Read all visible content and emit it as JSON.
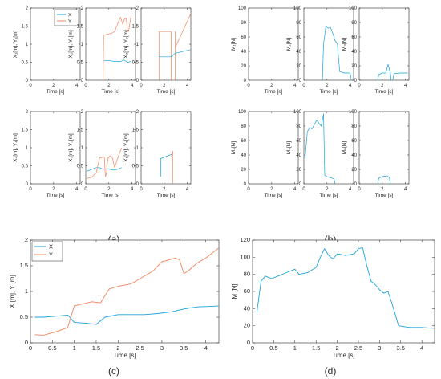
{
  "colors": {
    "x_series": "#1ca3d9",
    "y_series": "#f2845c",
    "axis": "#262626"
  },
  "captions": {
    "a": "(a)",
    "b": "(b)",
    "c": "(c)",
    "d": "(d)"
  },
  "chart_data": [
    {
      "id": "a1",
      "type": "line",
      "xlabel": "Time [s]",
      "ylabel": "X₁[m], Y₁[m]",
      "xlim": [
        0,
        4.3
      ],
      "ylim": [
        0,
        2
      ],
      "xticks": [
        0,
        2,
        4
      ],
      "yticks": [
        0,
        0.5,
        1,
        1.5,
        2
      ],
      "legend": {
        "placement": "top-right",
        "entries": [
          "X",
          "Y"
        ]
      },
      "series": []
    },
    {
      "id": "a2",
      "type": "line",
      "xlabel": "Time [s]",
      "ylabel": "X₂[m], Y₂[m]",
      "xlim": [
        0,
        4.3
      ],
      "ylim": [
        0,
        2
      ],
      "xticks": [
        0,
        2,
        4
      ],
      "yticks": [
        0,
        0.5,
        1,
        1.5,
        2
      ],
      "series": [
        {
          "color": "x",
          "points": [
            [
              1.5,
              0.55
            ],
            [
              2.0,
              0.55
            ],
            [
              2.5,
              0.52
            ],
            [
              3.0,
              0.52
            ],
            [
              3.3,
              0.56
            ],
            [
              3.6,
              0.5
            ],
            [
              3.9,
              0.52
            ]
          ]
        },
        {
          "color": "y",
          "points": [
            [
              1.5,
              0
            ],
            [
              1.55,
              1.25
            ],
            [
              2.2,
              1.3
            ],
            [
              2.5,
              1.35
            ],
            [
              2.8,
              1.6
            ],
            [
              3.0,
              1.75
            ],
            [
              3.2,
              1.55
            ],
            [
              3.35,
              1.7
            ],
            [
              3.5,
              1.72
            ],
            [
              3.6,
              1.35
            ],
            [
              3.7,
              1.35
            ],
            [
              3.8,
              1.55
            ],
            [
              3.9,
              1.75
            ],
            [
              3.95,
              1.8
            ]
          ]
        }
      ]
    },
    {
      "id": "a3",
      "type": "line",
      "xlabel": "Time [s]",
      "ylabel": "X₃[m], Y₃[m]",
      "xlim": [
        0,
        4.3
      ],
      "ylim": [
        0,
        2
      ],
      "xticks": [
        0,
        2,
        4
      ],
      "yticks": [
        0,
        0.5,
        1,
        1.5,
        2
      ],
      "series": [
        {
          "color": "y",
          "points": [
            [
              1.55,
              0
            ],
            [
              1.55,
              1.35
            ],
            [
              2.6,
              1.35
            ],
            [
              2.6,
              0
            ],
            [
              2.95,
              0
            ],
            [
              2.95,
              1.35
            ],
            [
              2.95,
              0.9
            ],
            [
              4.3,
              1.85
            ]
          ]
        },
        {
          "color": "x",
          "points": [
            [
              1.55,
              0.65
            ],
            [
              2.6,
              0.65
            ],
            [
              2.95,
              0.75
            ],
            [
              4.3,
              0.85
            ]
          ]
        }
      ]
    },
    {
      "id": "a4",
      "type": "line",
      "xlabel": "Time [s]",
      "ylabel": "X₄[m], Y₄[m]",
      "xlim": [
        0,
        4.3
      ],
      "ylim": [
        0,
        2
      ],
      "xticks": [
        0,
        2,
        4
      ],
      "yticks": [
        0,
        0.5,
        1,
        1.5,
        2
      ],
      "series": []
    },
    {
      "id": "a5",
      "type": "line",
      "xlabel": "Time [s]",
      "ylabel": "X₅[m], Y₅[m]",
      "xlim": [
        0,
        4.3
      ],
      "ylim": [
        0,
        2
      ],
      "xticks": [
        0,
        2,
        4
      ],
      "yticks": [
        0,
        0.5,
        1,
        1.5,
        2
      ],
      "series": [
        {
          "color": "x",
          "points": [
            [
              0.1,
              0.35
            ],
            [
              0.5,
              0.4
            ],
            [
              0.9,
              0.45
            ],
            [
              1.2,
              0.45
            ],
            [
              1.5,
              0.4
            ],
            [
              1.9,
              0.42
            ],
            [
              2.3,
              0.38
            ],
            [
              2.7,
              0.4
            ],
            [
              3.1,
              0.45
            ]
          ]
        },
        {
          "color": "y",
          "points": [
            [
              0.1,
              0.15
            ],
            [
              0.5,
              0.18
            ],
            [
              0.9,
              0.3
            ],
            [
              1.2,
              0.72
            ],
            [
              1.6,
              0.75
            ],
            [
              1.7,
              0.2
            ],
            [
              1.8,
              0.3
            ],
            [
              1.9,
              0.7
            ],
            [
              2.1,
              0.78
            ],
            [
              2.3,
              0.72
            ],
            [
              2.5,
              0.45
            ],
            [
              2.8,
              0.75
            ],
            [
              3.1,
              1.0
            ]
          ]
        }
      ]
    },
    {
      "id": "a6",
      "type": "line",
      "xlabel": "Time [s]",
      "ylabel": "X₆[m], Y₆[m]",
      "xlim": [
        0,
        4.3
      ],
      "ylim": [
        0,
        2
      ],
      "xticks": [
        0,
        2,
        4
      ],
      "yticks": [
        0,
        0.5,
        1,
        1.5,
        2
      ],
      "series": [
        {
          "color": "x",
          "points": [
            [
              1.7,
              0.2
            ],
            [
              1.7,
              0.7
            ],
            [
              2.5,
              0.8
            ],
            [
              2.7,
              0.82
            ]
          ]
        },
        {
          "color": "y",
          "points": [
            [
              2.6,
              0.75
            ],
            [
              2.75,
              0.9
            ],
            [
              2.75,
              0
            ]
          ]
        }
      ]
    },
    {
      "id": "b1",
      "type": "line",
      "xlabel": "Time [s]",
      "ylabel": "M₁[N]",
      "xlim": [
        0,
        4.3
      ],
      "ylim": [
        0,
        100
      ],
      "xticks": [
        0,
        2,
        4
      ],
      "yticks": [
        0,
        20,
        40,
        60,
        80,
        100
      ],
      "series": []
    },
    {
      "id": "b2",
      "type": "line",
      "xlabel": "Time [s]",
      "ylabel": "M₂[N]",
      "xlim": [
        0,
        4.3
      ],
      "ylim": [
        0,
        100
      ],
      "xticks": [
        0,
        2,
        4
      ],
      "yticks": [
        0,
        20,
        40,
        60,
        80,
        100
      ],
      "series": [
        {
          "color": "x",
          "points": [
            [
              1.6,
              0
            ],
            [
              1.7,
              50
            ],
            [
              1.9,
              75
            ],
            [
              2.1,
              72
            ],
            [
              2.3,
              73
            ],
            [
              2.5,
              65
            ],
            [
              2.7,
              55
            ],
            [
              2.9,
              50
            ],
            [
              3.0,
              30
            ],
            [
              3.1,
              12
            ],
            [
              3.5,
              10
            ],
            [
              4.0,
              10
            ],
            [
              4.1,
              0
            ]
          ]
        }
      ]
    },
    {
      "id": "b3",
      "type": "line",
      "xlabel": "Time [s]",
      "ylabel": "M₃[N]",
      "xlim": [
        0,
        4.3
      ],
      "ylim": [
        0,
        100
      ],
      "xticks": [
        0,
        2,
        4
      ],
      "yticks": [
        0,
        20,
        40,
        60,
        80,
        100
      ],
      "series": [
        {
          "color": "x",
          "points": [
            [
              1.6,
              0
            ],
            [
              1.7,
              8
            ],
            [
              2.0,
              10
            ],
            [
              2.3,
              10
            ],
            [
              2.5,
              22
            ],
            [
              2.7,
              10
            ],
            [
              2.75,
              0
            ],
            [
              2.9,
              0
            ],
            [
              3.0,
              9
            ],
            [
              3.5,
              10
            ],
            [
              4.2,
              10
            ]
          ]
        }
      ]
    },
    {
      "id": "b4",
      "type": "line",
      "xlabel": "Time [s]",
      "ylabel": "M₄[N]",
      "xlim": [
        0,
        4.3
      ],
      "ylim": [
        0,
        100
      ],
      "xticks": [
        0,
        2,
        4
      ],
      "yticks": [
        0,
        20,
        40,
        60,
        80,
        100
      ],
      "series": []
    },
    {
      "id": "b5",
      "type": "line",
      "xlabel": "Time [s]",
      "ylabel": "M₅[N]",
      "xlim": [
        0,
        4.3
      ],
      "ylim": [
        0,
        100
      ],
      "xticks": [
        0,
        2,
        4
      ],
      "yticks": [
        0,
        20,
        40,
        60,
        80,
        100
      ],
      "series": [
        {
          "color": "x",
          "points": [
            [
              0.1,
              35
            ],
            [
              0.3,
              72
            ],
            [
              0.5,
              78
            ],
            [
              0.7,
              76
            ],
            [
              0.9,
              82
            ],
            [
              1.1,
              88
            ],
            [
              1.3,
              84
            ],
            [
              1.5,
              80
            ],
            [
              1.7,
              97
            ],
            [
              1.8,
              12
            ],
            [
              2.0,
              10
            ],
            [
              2.2,
              9
            ],
            [
              2.4,
              8
            ],
            [
              2.6,
              7
            ],
            [
              2.7,
              0
            ]
          ]
        }
      ]
    },
    {
      "id": "b6",
      "type": "line",
      "xlabel": "Time [s]",
      "ylabel": "M₆[N]",
      "xlim": [
        0,
        4.3
      ],
      "ylim": [
        0,
        100
      ],
      "xticks": [
        0,
        2,
        4
      ],
      "yticks": [
        0,
        20,
        40,
        60,
        80,
        100
      ],
      "series": [
        {
          "color": "x",
          "points": [
            [
              1.6,
              0
            ],
            [
              1.7,
              8
            ],
            [
              2.0,
              10
            ],
            [
              2.4,
              11
            ],
            [
              2.6,
              9
            ],
            [
              2.7,
              0
            ]
          ]
        }
      ]
    },
    {
      "id": "c",
      "type": "line",
      "xlabel": "Time [s]",
      "ylabel": "X [m], Y [m]",
      "xlim": [
        0,
        4.3
      ],
      "ylim": [
        0,
        2
      ],
      "xticks": [
        0,
        0.5,
        1,
        1.5,
        2,
        2.5,
        3,
        3.5,
        4
      ],
      "yticks": [
        0,
        0.5,
        1,
        1.5,
        2
      ],
      "legend": {
        "placement": "top-left",
        "entries": [
          "X",
          "Y"
        ]
      },
      "series": [
        {
          "color": "x",
          "points": [
            [
              0.1,
              0.5
            ],
            [
              0.3,
              0.5
            ],
            [
              0.6,
              0.52
            ],
            [
              0.85,
              0.54
            ],
            [
              1.0,
              0.4
            ],
            [
              1.3,
              0.38
            ],
            [
              1.5,
              0.36
            ],
            [
              1.7,
              0.5
            ],
            [
              2.0,
              0.55
            ],
            [
              2.3,
              0.55
            ],
            [
              2.6,
              0.55
            ],
            [
              2.9,
              0.57
            ],
            [
              3.2,
              0.6
            ],
            [
              3.5,
              0.66
            ],
            [
              3.8,
              0.7
            ],
            [
              4.1,
              0.71
            ],
            [
              4.3,
              0.72
            ]
          ]
        },
        {
          "color": "y",
          "points": [
            [
              0.1,
              0.16
            ],
            [
              0.3,
              0.15
            ],
            [
              0.6,
              0.22
            ],
            [
              0.85,
              0.3
            ],
            [
              1.0,
              0.72
            ],
            [
              1.2,
              0.76
            ],
            [
              1.4,
              0.8
            ],
            [
              1.6,
              0.78
            ],
            [
              1.8,
              1.05
            ],
            [
              2.0,
              1.1
            ],
            [
              2.3,
              1.15
            ],
            [
              2.5,
              1.25
            ],
            [
              2.8,
              1.4
            ],
            [
              3.0,
              1.58
            ],
            [
              3.1,
              1.6
            ],
            [
              3.3,
              1.65
            ],
            [
              3.4,
              1.62
            ],
            [
              3.5,
              1.35
            ],
            [
              3.6,
              1.4
            ],
            [
              3.8,
              1.55
            ],
            [
              4.0,
              1.65
            ],
            [
              4.3,
              1.85
            ]
          ]
        }
      ]
    },
    {
      "id": "d",
      "type": "line",
      "xlabel": "Time [s]",
      "ylabel": "M [N]",
      "xlim": [
        0,
        4.3
      ],
      "ylim": [
        0,
        120
      ],
      "xticks": [
        0,
        0.5,
        1,
        1.5,
        2,
        2.5,
        3,
        3.5,
        4
      ],
      "yticks": [
        0,
        20,
        40,
        60,
        80,
        100,
        120
      ],
      "series": [
        {
          "color": "x",
          "points": [
            [
              0.1,
              35
            ],
            [
              0.2,
              72
            ],
            [
              0.3,
              78
            ],
            [
              0.45,
              75
            ],
            [
              0.6,
              78
            ],
            [
              0.8,
              82
            ],
            [
              1.0,
              86
            ],
            [
              1.1,
              80
            ],
            [
              1.3,
              82
            ],
            [
              1.5,
              88
            ],
            [
              1.6,
              100
            ],
            [
              1.7,
              110
            ],
            [
              1.8,
              102
            ],
            [
              1.9,
              98
            ],
            [
              2.0,
              104
            ],
            [
              2.2,
              102
            ],
            [
              2.4,
              104
            ],
            [
              2.5,
              110
            ],
            [
              2.6,
              111
            ],
            [
              2.7,
              90
            ],
            [
              2.8,
              72
            ],
            [
              2.9,
              68
            ],
            [
              3.0,
              62
            ],
            [
              3.1,
              58
            ],
            [
              3.2,
              60
            ],
            [
              3.3,
              45
            ],
            [
              3.45,
              20
            ],
            [
              3.7,
              18
            ],
            [
              4.0,
              18
            ],
            [
              4.3,
              17
            ]
          ]
        }
      ]
    }
  ]
}
